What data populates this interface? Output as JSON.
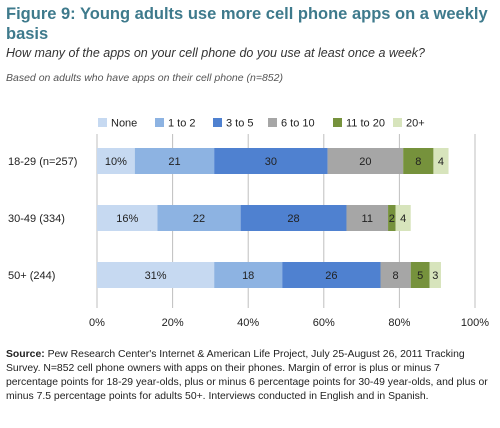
{
  "header": {
    "title": "Figure 9: Young adults use more cell phone apps on a weekly basis",
    "question": "How many of the apps on your cell phone do you use at least once a week?",
    "base": "Based on adults who have apps on their cell phone (n=852)"
  },
  "note": {
    "lead": "Source:",
    "text": "Pew Research Center's Internet & American Life Project, July 25-August 26, 2011 Tracking Survey.  N=852 cell phone owners with apps on their phones. Margin of error is plus or minus 7 percentage points for 18-29 year-olds, plus or minus 6 percentage points for 30-49 year-olds, and plus or minus 7.5 percentage points for adults 50+. Interviews conducted in English and in Spanish."
  },
  "chart_data": {
    "type": "bar",
    "orientation": "horizontal",
    "stacked": true,
    "title": "Figure 9: Young adults use more cell phone apps on a weekly basis",
    "categories": [
      "18-29 (n=257)",
      "30-49 (334)",
      "50+ (244)"
    ],
    "series": [
      {
        "name": "None",
        "color": "#c6d9f1",
        "values": [
          10,
          16,
          31
        ],
        "labels": [
          "10%",
          "16%",
          "31%"
        ]
      },
      {
        "name": "1 to 2",
        "color": "#8db3e2",
        "values": [
          21,
          22,
          18
        ],
        "labels": [
          "21",
          "22",
          "18"
        ]
      },
      {
        "name": "3 to 5",
        "color": "#4f81d0",
        "values": [
          30,
          28,
          26
        ],
        "labels": [
          "30",
          "28",
          "26"
        ]
      },
      {
        "name": "6 to 10",
        "color": "#a6a6a6",
        "values": [
          20,
          11,
          8
        ],
        "labels": [
          "20",
          "11",
          "8"
        ]
      },
      {
        "name": "11 to 20",
        "color": "#76923c",
        "values": [
          8,
          2,
          5
        ],
        "labels": [
          "8",
          "2",
          "5"
        ]
      },
      {
        "name": "20+",
        "color": "#d7e4bc",
        "values": [
          4,
          4,
          3
        ],
        "labels": [
          "4",
          "4",
          "3"
        ]
      }
    ],
    "xlim": [
      0,
      100
    ],
    "xticks": [
      "0%",
      "20%",
      "40%",
      "60%",
      "80%",
      "100%"
    ],
    "grid": true,
    "legend": "top"
  }
}
